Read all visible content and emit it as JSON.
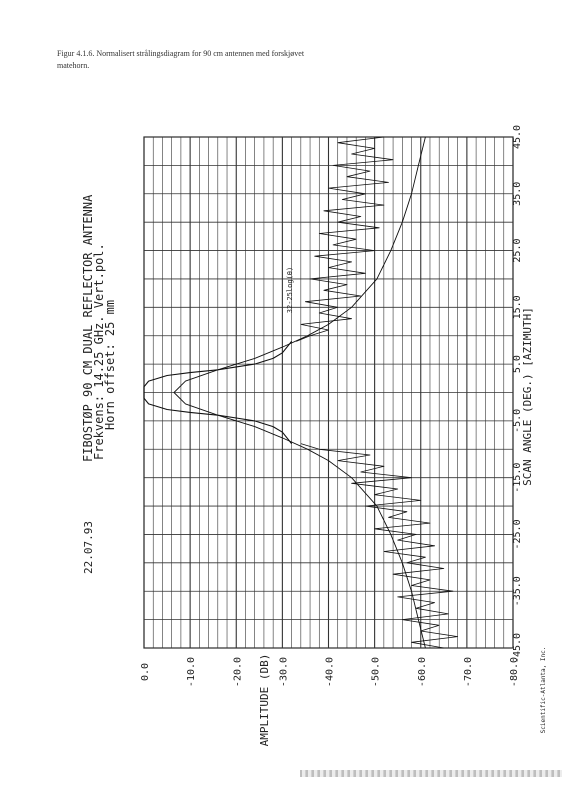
{
  "caption": {
    "line1": "Figur 4.1.6. Normalisert strålingsdiagram for 90 cm antennen med forskjøvet",
    "line2": "matehorn."
  },
  "chart_data": {
    "type": "line",
    "header": {
      "date": "22.07.93",
      "title": "FIBOSTØP 90 CM DUAL REFLECTOR ANTENNA",
      "line2": "Frekvens: 14.25 GHz. Vert.pol.",
      "line3": "Horn offset: 25 mm"
    },
    "xlabel": "SCAN ANGLE (DEG.) [AZIMUTH]",
    "ylabel": "AMPLITUDE (DB)",
    "x_ticks": [
      "-45.0",
      "-35.0",
      "-25.0",
      "-15.0",
      "-5.0",
      "5.0",
      "15.0",
      "25.0",
      "35.0",
      "45.0"
    ],
    "y_ticks": [
      "0.0",
      "-10.0",
      "-20.0",
      "-30.0",
      "-40.0",
      "-50.0",
      "-60.0",
      "-70.0",
      "-80.0"
    ],
    "xlim": [
      -45,
      45
    ],
    "ylim": [
      -80,
      0
    ],
    "grid": true,
    "annotation": "32-25log(θ)",
    "footer": "Scientific-Atlanta, Inc.",
    "series": [
      {
        "role": "envelope",
        "x": [
          -45,
          -40,
          -35,
          -30,
          -25,
          -20,
          -15,
          -12,
          -10,
          -8,
          -6,
          -4,
          -2,
          0,
          2,
          4,
          6,
          8,
          10,
          12,
          15,
          20,
          25,
          30,
          35,
          40,
          45
        ],
        "y": [
          -61,
          -59.5,
          -58,
          -56,
          -53.5,
          -50.5,
          -45,
          -40,
          -35.5,
          -30,
          -24,
          -16,
          -9,
          -6.5,
          -9,
          -16,
          -24,
          -30,
          -35.5,
          -40,
          -45,
          -50.5,
          -53.5,
          -56,
          -58,
          -59.5,
          -61
        ]
      },
      {
        "role": "main-beam",
        "x": [
          -9,
          -7,
          -6,
          -5,
          -4.5,
          -4,
          -3.5,
          -3,
          -2,
          -1,
          0,
          1,
          2,
          3,
          3.5,
          4,
          5,
          6,
          7,
          9
        ],
        "y": [
          -32,
          -30,
          -28,
          -24,
          -20,
          -16,
          -10,
          -5,
          -1,
          0,
          0,
          0,
          -1,
          -5,
          -10,
          -16,
          -24,
          -28,
          -30,
          -32
        ]
      },
      {
        "role": "sidelobes",
        "x": [
          -45,
          -44,
          -43,
          -42,
          -41,
          -40,
          -39,
          -38,
          -37,
          -36,
          -35,
          -34,
          -33,
          -32,
          -31,
          -30,
          -29,
          -28,
          -27,
          -26,
          -25,
          -24,
          -23,
          -22,
          -21,
          -20,
          -19,
          -18,
          -17,
          -16,
          -15,
          -14,
          -13,
          -12,
          -11,
          -10,
          -9,
          9,
          10,
          11,
          12,
          13,
          14,
          15,
          16,
          17,
          18,
          19,
          20,
          21,
          22,
          23,
          24,
          25,
          26,
          27,
          28,
          29,
          30,
          31,
          32,
          33,
          34,
          35,
          36,
          37,
          38,
          39,
          40,
          41,
          42,
          43,
          44,
          45
        ],
        "y": [
          -65,
          -58,
          -68,
          -60,
          -64,
          -56,
          -66,
          -59,
          -63,
          -55,
          -67,
          -58,
          -62,
          -54,
          -65,
          -57,
          -61,
          -52,
          -63,
          -55,
          -59,
          -50,
          -62,
          -53,
          -57,
          -48,
          -60,
          -50,
          -55,
          -45,
          -58,
          -47,
          -52,
          -42,
          -49,
          -38,
          -34,
          -33,
          -36,
          -40,
          -34,
          -45,
          -38,
          -42,
          -35,
          -47,
          -39,
          -44,
          -36,
          -48,
          -40,
          -45,
          -37,
          -50,
          -41,
          -46,
          -38,
          -51,
          -42,
          -47,
          -39,
          -52,
          -43,
          -48,
          -40,
          -53,
          -44,
          -49,
          -41,
          -54,
          -45,
          -50,
          -42,
          -52
        ]
      }
    ]
  }
}
